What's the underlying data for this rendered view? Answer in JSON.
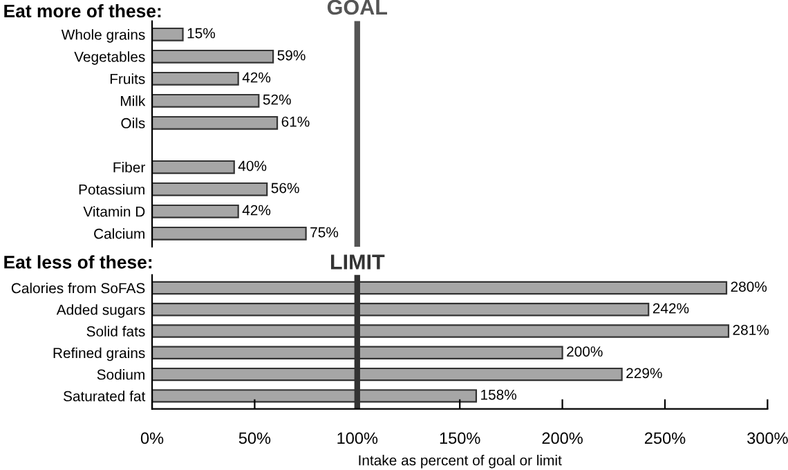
{
  "chart_data": [
    {
      "type": "bar",
      "orientation": "horizontal",
      "title": "Eat more of these:",
      "categories": [
        "Whole grains",
        "Vegetables",
        "Fruits",
        "Milk",
        "Oils",
        null,
        "Fiber",
        "Potassium",
        "Vitamin D",
        "Calcium"
      ],
      "values": [
        15,
        59,
        42,
        52,
        61,
        null,
        40,
        56,
        42,
        75
      ],
      "value_labels": [
        "15%",
        "59%",
        "42%",
        "52%",
        "61%",
        null,
        "40%",
        "56%",
        "42%",
        "75%"
      ],
      "color": "#a6a6a6",
      "xlim": [
        0,
        300
      ],
      "tick_labels": "y",
      "grid": false,
      "legend": false,
      "ref_lines": [
        {
          "axis": "x",
          "value": 100,
          "label": "GOAL",
          "color": "#555555"
        }
      ]
    },
    {
      "type": "bar",
      "orientation": "horizontal",
      "title": "Eat less of these:",
      "categories": [
        "Calories from SoFAS",
        "Added sugars",
        "Solid fats",
        "Refined grains",
        "Sodium",
        "Saturated fat"
      ],
      "values": [
        280,
        242,
        281,
        200,
        229,
        158
      ],
      "value_labels": [
        "280%",
        "242%",
        "281%",
        "200%",
        "229%",
        "158%"
      ],
      "color": "#a6a6a6",
      "xlim": [
        0,
        300
      ],
      "xticks": [
        {
          "value": 0,
          "label": "0%"
        },
        {
          "value": 50,
          "label": "50%"
        },
        {
          "value": 100,
          "label": "100%"
        },
        {
          "value": 150,
          "label": "150%"
        },
        {
          "value": 200,
          "label": "200%"
        },
        {
          "value": 250,
          "label": "250%"
        },
        {
          "value": 300,
          "label": "300%"
        }
      ],
      "xlabel": "Intake as percent of goal or limit",
      "grid": false,
      "legend": false,
      "ref_lines": [
        {
          "axis": "x",
          "value": 100,
          "label": "LIMIT",
          "color": "#333333"
        }
      ]
    }
  ]
}
